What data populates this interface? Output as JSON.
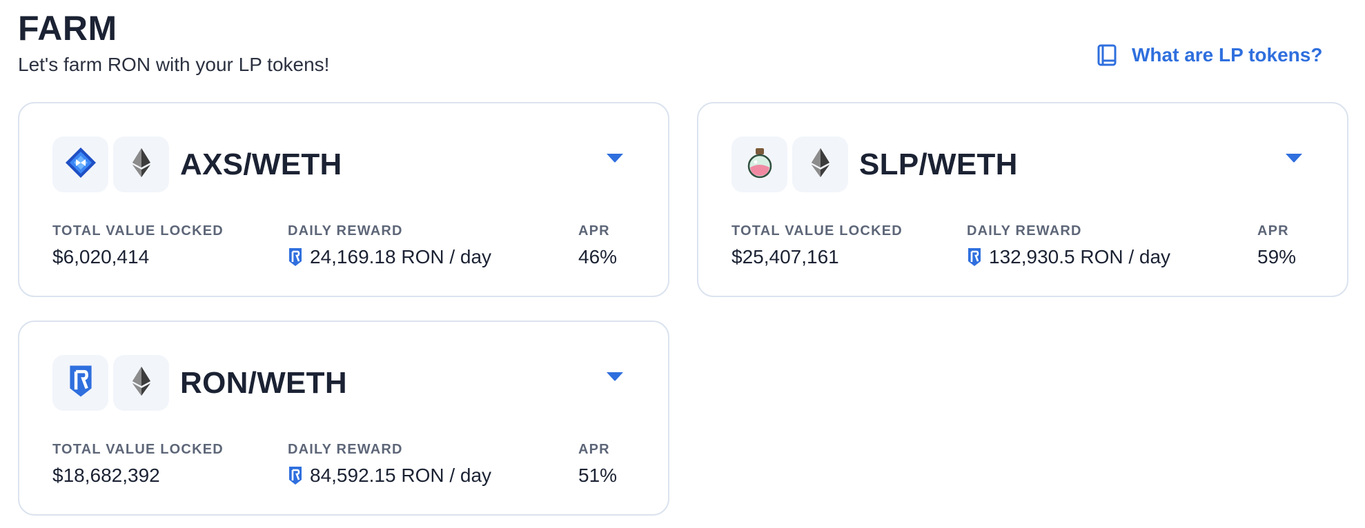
{
  "page": {
    "title": "FARM",
    "subtitle": "Let's farm RON with your LP tokens!"
  },
  "help_link": {
    "label": "What are LP tokens?",
    "icon": "book-icon"
  },
  "colors": {
    "accent": "#2f6fde",
    "text": "#1b2233",
    "muted": "#5d6678",
    "card_border": "#dbe3ef",
    "tile_bg": "#f2f5fa"
  },
  "labels": {
    "tvl": "TOTAL VALUE LOCKED",
    "daily_reward": "DAILY REWARD",
    "apr": "APR"
  },
  "pools": [
    {
      "pair": "AXS/WETH",
      "token_icons": [
        "axs-icon",
        "eth-icon"
      ],
      "tvl": "$6,020,414",
      "daily_reward": "24,169.18 RON / day",
      "apr": "46%"
    },
    {
      "pair": "SLP/WETH",
      "token_icons": [
        "slp-icon",
        "eth-icon"
      ],
      "tvl": "$25,407,161",
      "daily_reward": "132,930.5 RON / day",
      "apr": "59%"
    },
    {
      "pair": "RON/WETH",
      "token_icons": [
        "ron-icon",
        "eth-icon"
      ],
      "tvl": "$18,682,392",
      "daily_reward": "84,592.15 RON / day",
      "apr": "51%"
    }
  ]
}
